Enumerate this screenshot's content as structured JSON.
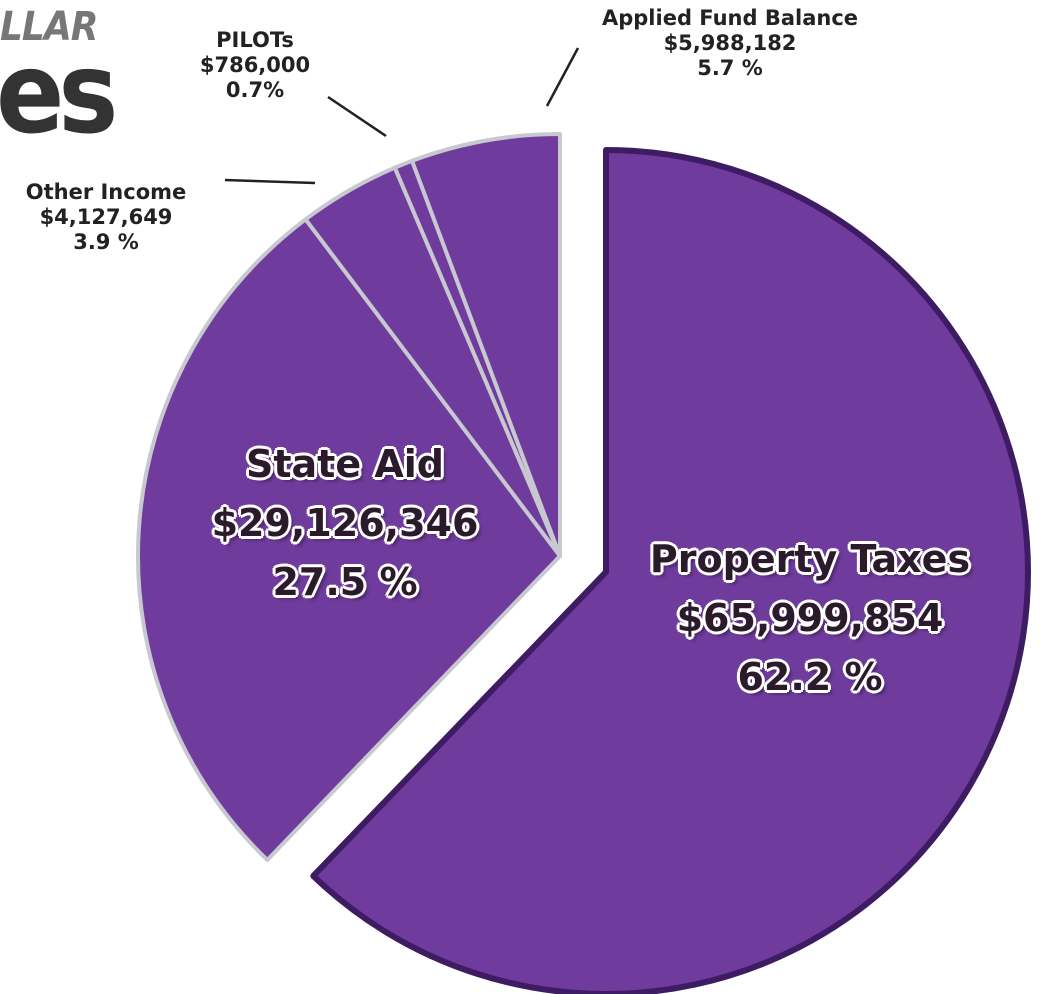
{
  "chart_data": {
    "type": "pie",
    "title_fragments": [
      "LLAR",
      "es"
    ],
    "categories": [
      "Property Taxes",
      "State Aid",
      "Other Income",
      "PILOTs",
      "Applied Fund Balance"
    ],
    "values": [
      62.2,
      27.5,
      3.9,
      0.7,
      5.7
    ],
    "value_labels": [
      "62.2 %",
      "27.5 %",
      "3.9 %",
      "0.7%",
      "5.7 %"
    ],
    "amount_labels": [
      "$65,999,854",
      "$29,126,346",
      "$4,127,649",
      "$786,000",
      "$5,988,182"
    ],
    "color": "#6f3b9c"
  }
}
